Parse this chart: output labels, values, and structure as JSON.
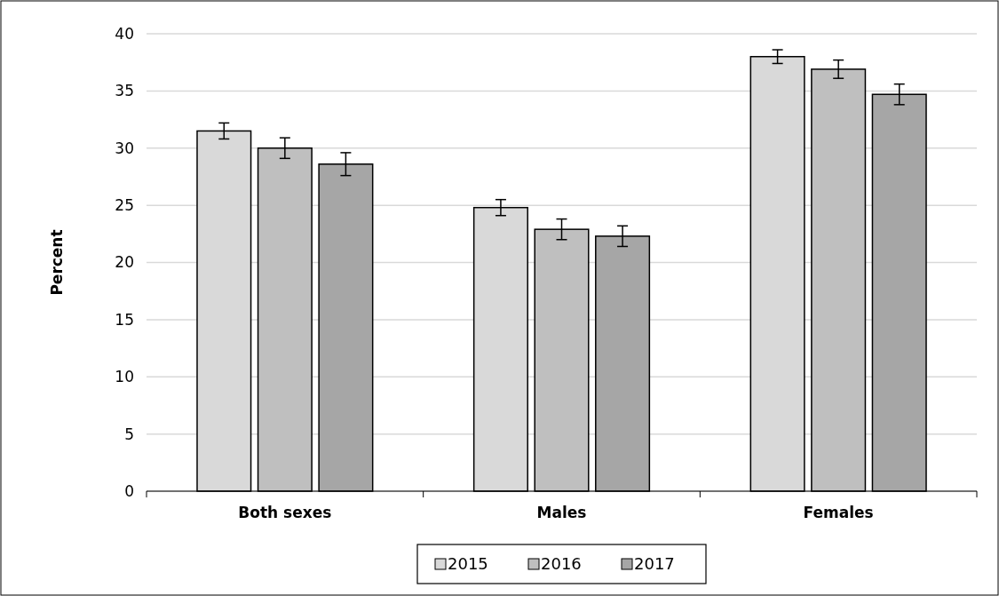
{
  "chart_data": {
    "type": "bar",
    "ylabel": "Percent",
    "categories": [
      "Both sexes",
      "Males",
      "Females"
    ],
    "series": [
      {
        "name": "2015",
        "color": "#d9d9d9",
        "values": [
          31.5,
          24.8,
          38.0
        ],
        "errors": [
          0.7,
          0.7,
          0.6
        ]
      },
      {
        "name": "2016",
        "color": "#bfbfbf",
        "values": [
          30.0,
          22.9,
          36.9
        ],
        "errors": [
          0.9,
          0.9,
          0.8
        ]
      },
      {
        "name": "2017",
        "color": "#a6a6a6",
        "values": [
          28.6,
          22.3,
          34.7
        ],
        "errors": [
          1.0,
          0.9,
          0.9
        ]
      }
    ],
    "ylim": [
      0,
      40
    ],
    "yticks": [
      0,
      5,
      10,
      15,
      20,
      25,
      30,
      35,
      40
    ],
    "grid": "y",
    "legend": "bottom"
  }
}
